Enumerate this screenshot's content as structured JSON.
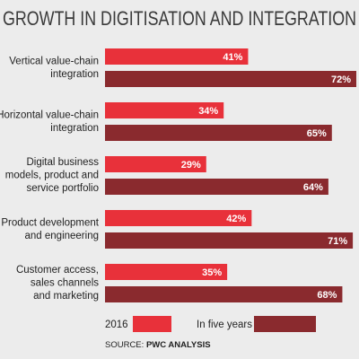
{
  "chart_data": {
    "type": "bar",
    "orientation": "horizontal",
    "title": "GROWTH IN DIGITISATION AND INTEGRATION",
    "categories": [
      [
        "Vertical value-chain",
        "integration"
      ],
      [
        "Horizontal value-chain",
        "integration"
      ],
      [
        "Digital business",
        "models, product and",
        "service portfolio"
      ],
      [
        "Product development",
        "and engineering"
      ],
      [
        "Customer access,",
        "sales channels",
        "and marketing"
      ]
    ],
    "series": [
      {
        "name": "2016",
        "color": "#e8313a",
        "values": [
          41,
          34,
          29,
          42,
          35
        ],
        "value_labels": [
          "41%",
          "34%",
          "29%",
          "42%",
          "35%"
        ]
      },
      {
        "name": "In five years",
        "color": "#8a2a2e",
        "values": [
          72,
          65,
          64,
          71,
          68
        ],
        "value_labels": [
          "72%",
          "65%",
          "64%",
          "71%",
          "68%"
        ]
      }
    ],
    "source_label": "SOURCE:",
    "source": "PWC ANALYSIS"
  }
}
